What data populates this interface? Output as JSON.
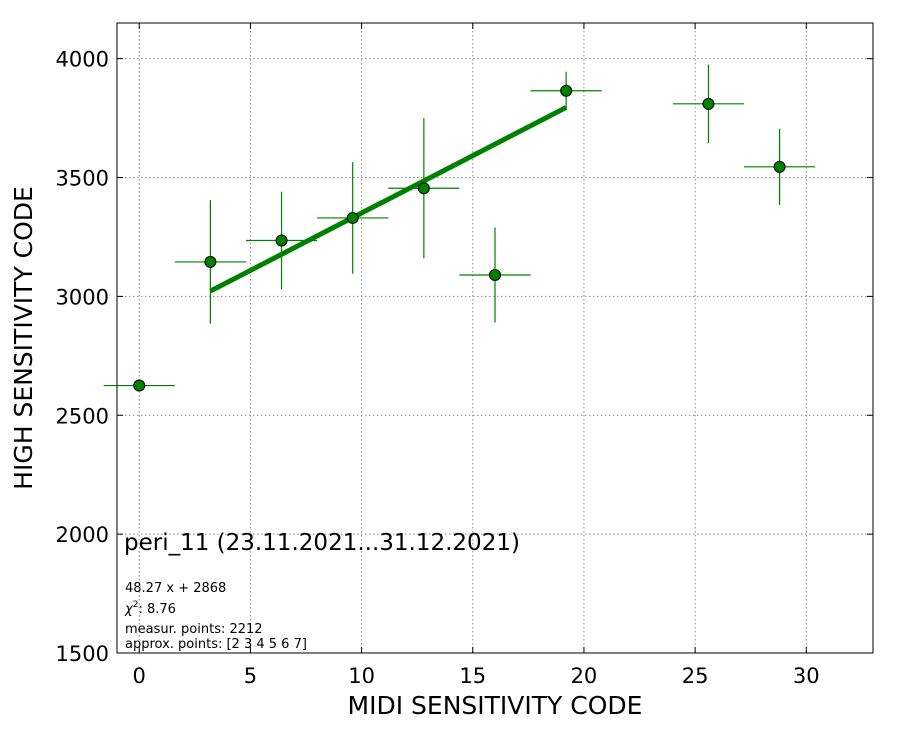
{
  "chart_data": {
    "type": "scatter",
    "xlabel": "MIDI SENSITIVITY CODE",
    "ylabel": "HIGH SENSITIVITY CODE",
    "xlim": [
      -1,
      33
    ],
    "ylim": [
      1500,
      4150
    ],
    "xticks": [
      0,
      5,
      10,
      15,
      20,
      25,
      30
    ],
    "yticks": [
      1500,
      2000,
      2500,
      3000,
      3500,
      4000
    ],
    "grid": true,
    "grid_style": "dotted",
    "colors": {
      "points": "#008000",
      "errorbars": "#008000",
      "fit": "#008000",
      "marker_edge": "#000000"
    },
    "points": [
      {
        "x": 0,
        "y": 2625,
        "xerr": 1.6,
        "yerr": 0
      },
      {
        "x": 3.2,
        "y": 3145,
        "xerr": 1.6,
        "yerr": 260
      },
      {
        "x": 6.4,
        "y": 3235,
        "xerr": 1.6,
        "yerr": 205
      },
      {
        "x": 9.6,
        "y": 3330,
        "xerr": 1.6,
        "yerr": 235
      },
      {
        "x": 12.8,
        "y": 3455,
        "xerr": 1.6,
        "yerr": 295
      },
      {
        "x": 16.0,
        "y": 3090,
        "xerr": 1.6,
        "yerr": 200
      },
      {
        "x": 19.2,
        "y": 3865,
        "xerr": 1.6,
        "yerr": 80
      },
      {
        "x": 25.6,
        "y": 3810,
        "xerr": 1.6,
        "yerr": 165
      },
      {
        "x": 28.8,
        "y": 3545,
        "xerr": 1.6,
        "yerr": 160
      }
    ],
    "fit": {
      "slope": 48.27,
      "intercept": 2868,
      "x_range": [
        3.2,
        19.2
      ]
    },
    "annotations": {
      "title": "peri_11 (23.11.2021...31.12.2021)",
      "fit_label": "48.27 x + 2868",
      "chi2_label": "8.76",
      "measur_points": "measur. points: 2212",
      "approx_points": "approx. points: [2 3 4 5 6 7]"
    }
  }
}
